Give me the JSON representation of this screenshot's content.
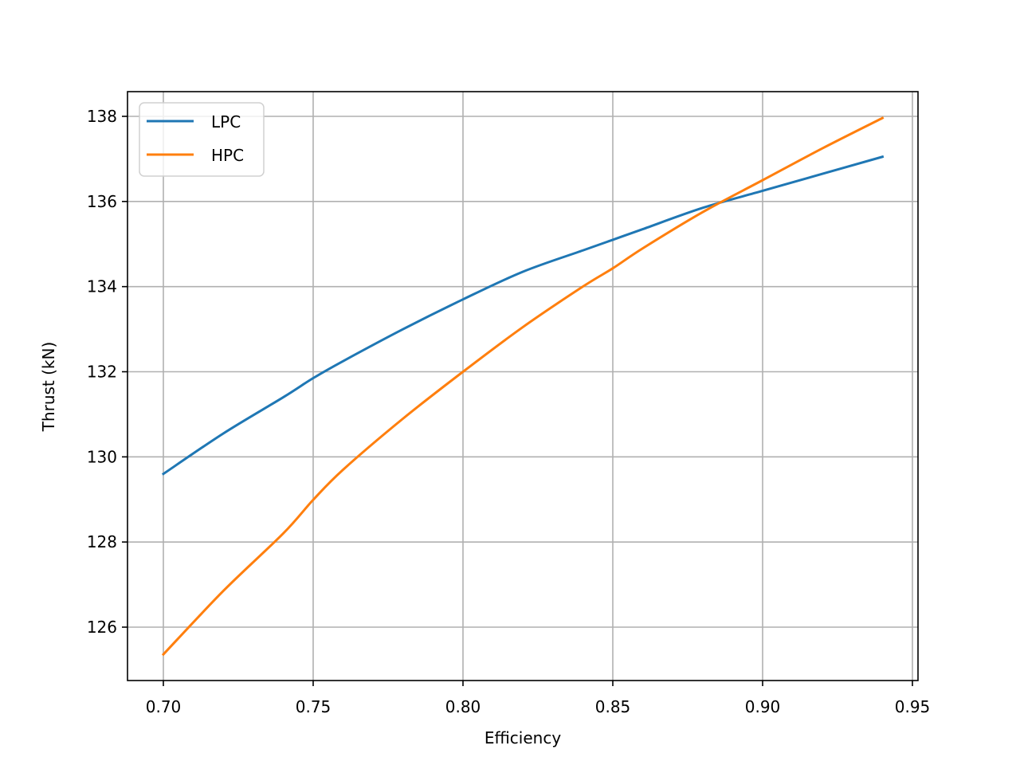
{
  "chart_data": {
    "type": "line",
    "title": "",
    "xlabel": "Efficiency",
    "ylabel": "Thrust (kN)",
    "xlim": [
      0.688,
      0.952
    ],
    "ylim": [
      124.8,
      138.55
    ],
    "xticks": [
      0.7,
      0.75,
      0.8,
      0.85,
      0.9,
      0.95
    ],
    "xtick_labels": [
      "0.70",
      "0.75",
      "0.80",
      "0.85",
      "0.90",
      "0.95"
    ],
    "yticks": [
      126,
      128,
      130,
      132,
      134,
      136,
      138
    ],
    "ytick_labels": [
      "126",
      "128",
      "130",
      "132",
      "134",
      "136",
      "138"
    ],
    "grid": true,
    "legend_position": "upper left",
    "x": [
      0.7,
      0.72,
      0.74,
      0.75,
      0.76,
      0.78,
      0.8,
      0.82,
      0.84,
      0.85,
      0.86,
      0.88,
      0.9,
      0.92,
      0.94
    ],
    "series": [
      {
        "name": "LPC",
        "color": "#1f77b4",
        "values": [
          129.6,
          130.55,
          131.4,
          131.85,
          132.25,
          133.0,
          133.7,
          134.35,
          134.85,
          135.1,
          135.35,
          135.85,
          136.25,
          136.65,
          137.05
        ]
      },
      {
        "name": "HPC",
        "color": "#ff7f0e",
        "values": [
          125.36,
          126.85,
          128.2,
          128.99,
          129.7,
          130.9,
          132.0,
          133.05,
          134.0,
          134.43,
          134.9,
          135.75,
          136.5,
          137.25,
          137.96
        ]
      }
    ]
  }
}
